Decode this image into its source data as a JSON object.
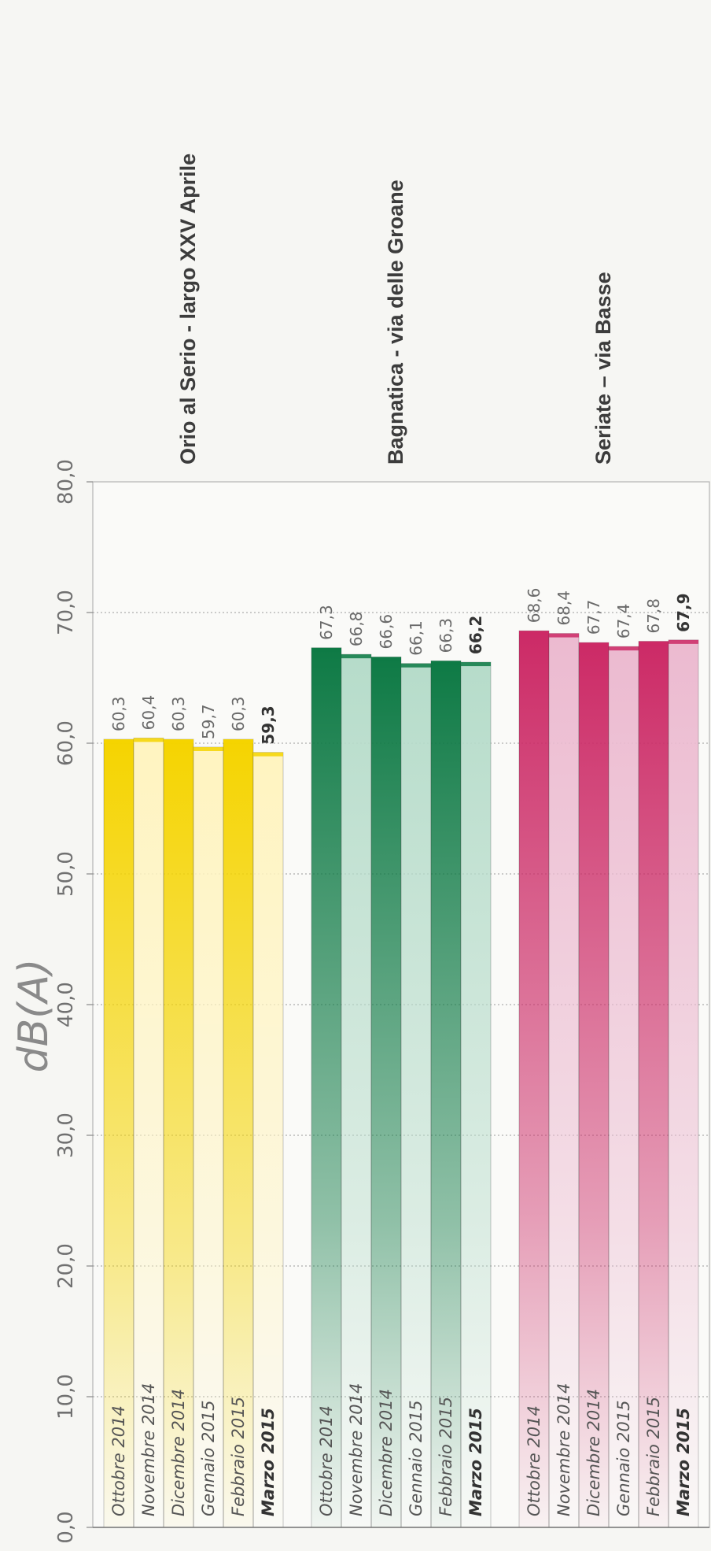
{
  "chart_data": {
    "type": "bar",
    "orientation": "horizontal",
    "ylabel": "dB(A)",
    "ylim": [
      0,
      80
    ],
    "ticks": [
      "0,0",
      "10,0",
      "20,0",
      "30,0",
      "40,0",
      "50,0",
      "60,0",
      "70,0",
      "80,0"
    ],
    "grid": true,
    "groups": [
      {
        "title": "Orio al Serio - largo XXV Aprile",
        "colors": [
          "#f5d400",
          "#fff4c0"
        ],
        "bars": [
          {
            "label": "Ottobre 2014",
            "value": 60.3,
            "text": "60,3",
            "bold": false,
            "style": "dark"
          },
          {
            "label": "Novembre 2014",
            "value": 60.4,
            "text": "60,4",
            "bold": false,
            "style": "light"
          },
          {
            "label": "Dicembre 2014",
            "value": 60.3,
            "text": "60,3",
            "bold": false,
            "style": "dark"
          },
          {
            "label": "Gennaio 2015",
            "value": 59.7,
            "text": "59,7",
            "bold": false,
            "style": "light"
          },
          {
            "label": "Febbraio 2015",
            "value": 60.3,
            "text": "60,3",
            "bold": false,
            "style": "dark"
          },
          {
            "label": "Marzo 2015",
            "value": 59.3,
            "text": "59,3",
            "bold": true,
            "style": "light"
          }
        ]
      },
      {
        "title": "Bagnatica - via delle Groane",
        "colors": [
          "#0e7a45",
          "#b6dcca"
        ],
        "bars": [
          {
            "label": "Ottobre 2014",
            "value": 67.3,
            "text": "67,3",
            "bold": false,
            "style": "dark"
          },
          {
            "label": "Novembre 2014",
            "value": 66.8,
            "text": "66,8",
            "bold": false,
            "style": "light"
          },
          {
            "label": "Dicembre 2014",
            "value": 66.6,
            "text": "66,6",
            "bold": false,
            "style": "dark"
          },
          {
            "label": "Gennaio 2015",
            "value": 66.1,
            "text": "66,1",
            "bold": false,
            "style": "light"
          },
          {
            "label": "Febbraio 2015",
            "value": 66.3,
            "text": "66,3",
            "bold": false,
            "style": "dark"
          },
          {
            "label": "Marzo 2015",
            "value": 66.2,
            "text": "66,2",
            "bold": true,
            "style": "light"
          }
        ]
      },
      {
        "title": "Seriate – via Basse",
        "colors": [
          "#cc2a66",
          "#ecbad0"
        ],
        "bars": [
          {
            "label": "Ottobre 2014",
            "value": 68.6,
            "text": "68,6",
            "bold": false,
            "style": "dark"
          },
          {
            "label": "Novembre 2014",
            "value": 68.4,
            "text": "68,4",
            "bold": false,
            "style": "light"
          },
          {
            "label": "Dicembre 2014",
            "value": 67.7,
            "text": "67,7",
            "bold": false,
            "style": "dark"
          },
          {
            "label": "Gennaio 2015",
            "value": 67.4,
            "text": "67,4",
            "bold": false,
            "style": "light"
          },
          {
            "label": "Febbraio 2015",
            "value": 67.8,
            "text": "67,8",
            "bold": false,
            "style": "dark"
          },
          {
            "label": "Marzo 2015",
            "value": 67.9,
            "text": "67,9",
            "bold": true,
            "style": "light"
          }
        ]
      }
    ]
  }
}
